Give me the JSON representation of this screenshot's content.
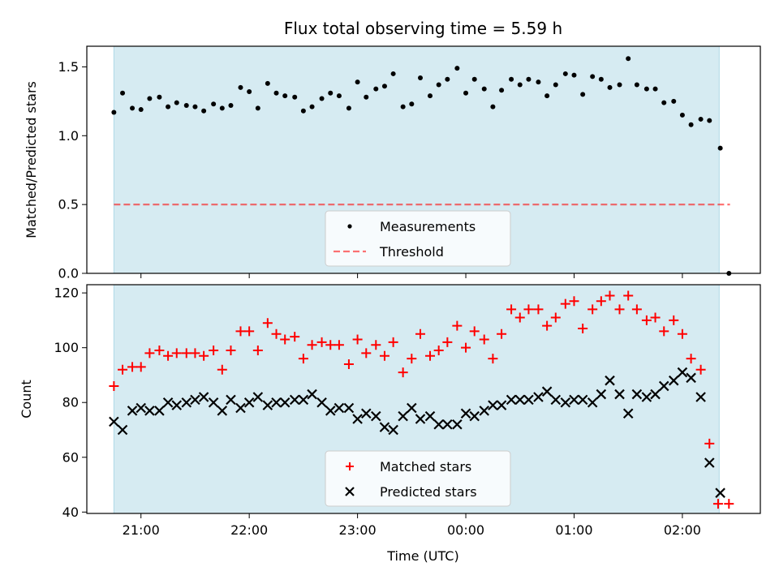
{
  "chart_data": {
    "title": "Flux total observing time = 5.59 h",
    "xlabel": "Time (UTC)",
    "x_tick_labels": [
      "21:00",
      "22:00",
      "23:00",
      "00:00",
      "01:00",
      "02:00"
    ],
    "x_tick_hours": [
      21.0,
      22.0,
      23.0,
      24.0,
      25.0,
      26.0
    ],
    "xlim_hours": [
      20.5,
      26.72
    ],
    "x_note": "x values are decimal UTC hours; values above 24 are after midnight",
    "observing_window_hours": [
      20.75,
      26.34
    ],
    "colors": {
      "observing_window": "#add8e6",
      "measurements": "#000000",
      "threshold": "#ff0000",
      "matched": "#ff0000",
      "predicted": "#000000"
    },
    "panels": [
      {
        "type": "scatter",
        "ylabel": "Matched/Predicted stars",
        "ylim": [
          0,
          1.65
        ],
        "y_ticks": [
          0.0,
          0.5,
          1.0,
          1.5
        ],
        "y_tick_labels": [
          "0.0",
          "0.5",
          "1.0",
          "1.5"
        ],
        "legend": {
          "position": "lower center",
          "entries": [
            "Measurements",
            "Threshold"
          ]
        },
        "threshold": 0.5,
        "series": [
          {
            "name": "Measurements",
            "marker": "dot",
            "points": [
              [
                20.75,
                1.17
              ],
              [
                20.83,
                1.31
              ],
              [
                20.92,
                1.2
              ],
              [
                21.0,
                1.19
              ],
              [
                21.08,
                1.27
              ],
              [
                21.17,
                1.28
              ],
              [
                21.25,
                1.21
              ],
              [
                21.33,
                1.24
              ],
              [
                21.42,
                1.22
              ],
              [
                21.5,
                1.21
              ],
              [
                21.58,
                1.18
              ],
              [
                21.67,
                1.23
              ],
              [
                21.75,
                1.2
              ],
              [
                21.83,
                1.22
              ],
              [
                21.92,
                1.35
              ],
              [
                22.0,
                1.32
              ],
              [
                22.08,
                1.2
              ],
              [
                22.17,
                1.38
              ],
              [
                22.25,
                1.31
              ],
              [
                22.33,
                1.29
              ],
              [
                22.42,
                1.28
              ],
              [
                22.5,
                1.18
              ],
              [
                22.58,
                1.21
              ],
              [
                22.67,
                1.27
              ],
              [
                22.75,
                1.31
              ],
              [
                22.83,
                1.29
              ],
              [
                22.92,
                1.2
              ],
              [
                23.0,
                1.39
              ],
              [
                23.08,
                1.28
              ],
              [
                23.17,
                1.34
              ],
              [
                23.25,
                1.36
              ],
              [
                23.33,
                1.45
              ],
              [
                23.42,
                1.21
              ],
              [
                23.5,
                1.23
              ],
              [
                23.58,
                1.42
              ],
              [
                23.67,
                1.29
              ],
              [
                23.75,
                1.37
              ],
              [
                23.83,
                1.41
              ],
              [
                23.92,
                1.49
              ],
              [
                24.0,
                1.31
              ],
              [
                24.08,
                1.41
              ],
              [
                24.17,
                1.34
              ],
              [
                24.25,
                1.21
              ],
              [
                24.33,
                1.33
              ],
              [
                24.42,
                1.41
              ],
              [
                24.5,
                1.37
              ],
              [
                24.58,
                1.41
              ],
              [
                24.67,
                1.39
              ],
              [
                24.75,
                1.29
              ],
              [
                24.83,
                1.37
              ],
              [
                24.92,
                1.45
              ],
              [
                25.0,
                1.44
              ],
              [
                25.08,
                1.3
              ],
              [
                25.17,
                1.43
              ],
              [
                25.25,
                1.41
              ],
              [
                25.33,
                1.35
              ],
              [
                25.42,
                1.37
              ],
              [
                25.5,
                1.56
              ],
              [
                25.58,
                1.37
              ],
              [
                25.67,
                1.34
              ],
              [
                25.75,
                1.34
              ],
              [
                25.83,
                1.24
              ],
              [
                25.92,
                1.25
              ],
              [
                26.0,
                1.15
              ],
              [
                26.08,
                1.08
              ],
              [
                26.17,
                1.12
              ],
              [
                26.25,
                1.11
              ],
              [
                26.35,
                0.91
              ],
              [
                26.43,
                0.0
              ]
            ]
          },
          {
            "name": "Threshold",
            "style": "dashed",
            "x_range": [
              20.75,
              26.44
            ],
            "y": 0.5
          }
        ]
      },
      {
        "type": "scatter",
        "ylabel": "Count",
        "ylim": [
          39.5,
          123
        ],
        "y_ticks": [
          40,
          60,
          80,
          100,
          120
        ],
        "y_tick_labels": [
          "40",
          "60",
          "80",
          "100",
          "120"
        ],
        "legend": {
          "position": "lower center",
          "entries": [
            "Matched stars",
            "Predicted stars"
          ]
        },
        "series": [
          {
            "name": "Matched stars",
            "marker": "plus",
            "points": [
              [
                20.75,
                86
              ],
              [
                20.83,
                92
              ],
              [
                20.92,
                93
              ],
              [
                21.0,
                93
              ],
              [
                21.08,
                98
              ],
              [
                21.17,
                99
              ],
              [
                21.25,
                97
              ],
              [
                21.33,
                98
              ],
              [
                21.42,
                98
              ],
              [
                21.5,
                98
              ],
              [
                21.58,
                97
              ],
              [
                21.67,
                99
              ],
              [
                21.75,
                92
              ],
              [
                21.83,
                99
              ],
              [
                21.92,
                106
              ],
              [
                22.0,
                106
              ],
              [
                22.08,
                99
              ],
              [
                22.17,
                109
              ],
              [
                22.25,
                105
              ],
              [
                22.33,
                103
              ],
              [
                22.42,
                104
              ],
              [
                22.5,
                96
              ],
              [
                22.58,
                101
              ],
              [
                22.67,
                102
              ],
              [
                22.75,
                101
              ],
              [
                22.83,
                101
              ],
              [
                22.92,
                94
              ],
              [
                23.0,
                103
              ],
              [
                23.08,
                98
              ],
              [
                23.17,
                101
              ],
              [
                23.25,
                97
              ],
              [
                23.33,
                102
              ],
              [
                23.42,
                91
              ],
              [
                23.5,
                96
              ],
              [
                23.58,
                105
              ],
              [
                23.67,
                97
              ],
              [
                23.75,
                99
              ],
              [
                23.83,
                102
              ],
              [
                23.92,
                108
              ],
              [
                24.0,
                100
              ],
              [
                24.08,
                106
              ],
              [
                24.17,
                103
              ],
              [
                24.25,
                96
              ],
              [
                24.33,
                105
              ],
              [
                24.42,
                114
              ],
              [
                24.5,
                111
              ],
              [
                24.58,
                114
              ],
              [
                24.67,
                114
              ],
              [
                24.75,
                108
              ],
              [
                24.83,
                111
              ],
              [
                24.92,
                116
              ],
              [
                25.0,
                117
              ],
              [
                25.08,
                107
              ],
              [
                25.17,
                114
              ],
              [
                25.25,
                117
              ],
              [
                25.33,
                119
              ],
              [
                25.42,
                114
              ],
              [
                25.5,
                119
              ],
              [
                25.58,
                114
              ],
              [
                25.67,
                110
              ],
              [
                25.75,
                111
              ],
              [
                25.83,
                106
              ],
              [
                25.92,
                110
              ],
              [
                26.0,
                105
              ],
              [
                26.08,
                96
              ],
              [
                26.17,
                92
              ],
              [
                26.25,
                65
              ],
              [
                26.33,
                43
              ],
              [
                26.43,
                43
              ]
            ]
          },
          {
            "name": "Predicted stars",
            "marker": "x",
            "points": [
              [
                20.75,
                73
              ],
              [
                20.83,
                70
              ],
              [
                20.92,
                77
              ],
              [
                21.0,
                78
              ],
              [
                21.08,
                77
              ],
              [
                21.17,
                77
              ],
              [
                21.25,
                80
              ],
              [
                21.33,
                79
              ],
              [
                21.42,
                80
              ],
              [
                21.5,
                81
              ],
              [
                21.58,
                82
              ],
              [
                21.67,
                80
              ],
              [
                21.75,
                77
              ],
              [
                21.83,
                81
              ],
              [
                21.92,
                78
              ],
              [
                22.0,
                80
              ],
              [
                22.08,
                82
              ],
              [
                22.17,
                79
              ],
              [
                22.25,
                80
              ],
              [
                22.33,
                80
              ],
              [
                22.42,
                81
              ],
              [
                22.5,
                81
              ],
              [
                22.58,
                83
              ],
              [
                22.67,
                80
              ],
              [
                22.75,
                77
              ],
              [
                22.83,
                78
              ],
              [
                22.92,
                78
              ],
              [
                23.0,
                74
              ],
              [
                23.08,
                76
              ],
              [
                23.17,
                75
              ],
              [
                23.25,
                71
              ],
              [
                23.33,
                70
              ],
              [
                23.42,
                75
              ],
              [
                23.5,
                78
              ],
              [
                23.58,
                74
              ],
              [
                23.67,
                75
              ],
              [
                23.75,
                72
              ],
              [
                23.83,
                72
              ],
              [
                23.92,
                72
              ],
              [
                24.0,
                76
              ],
              [
                24.08,
                75
              ],
              [
                24.17,
                77
              ],
              [
                24.25,
                79
              ],
              [
                24.33,
                79
              ],
              [
                24.42,
                81
              ],
              [
                24.5,
                81
              ],
              [
                24.58,
                81
              ],
              [
                24.67,
                82
              ],
              [
                24.75,
                84
              ],
              [
                24.83,
                81
              ],
              [
                24.92,
                80
              ],
              [
                25.0,
                81
              ],
              [
                25.08,
                81
              ],
              [
                25.17,
                80
              ],
              [
                25.25,
                83
              ],
              [
                25.33,
                88
              ],
              [
                25.42,
                83
              ],
              [
                25.5,
                76
              ],
              [
                25.58,
                83
              ],
              [
                25.67,
                82
              ],
              [
                25.75,
                83
              ],
              [
                25.83,
                86
              ],
              [
                25.92,
                88
              ],
              [
                26.0,
                91
              ],
              [
                26.08,
                89
              ],
              [
                26.17,
                82
              ],
              [
                26.25,
                58
              ],
              [
                26.35,
                47
              ]
            ]
          }
        ]
      }
    ]
  }
}
